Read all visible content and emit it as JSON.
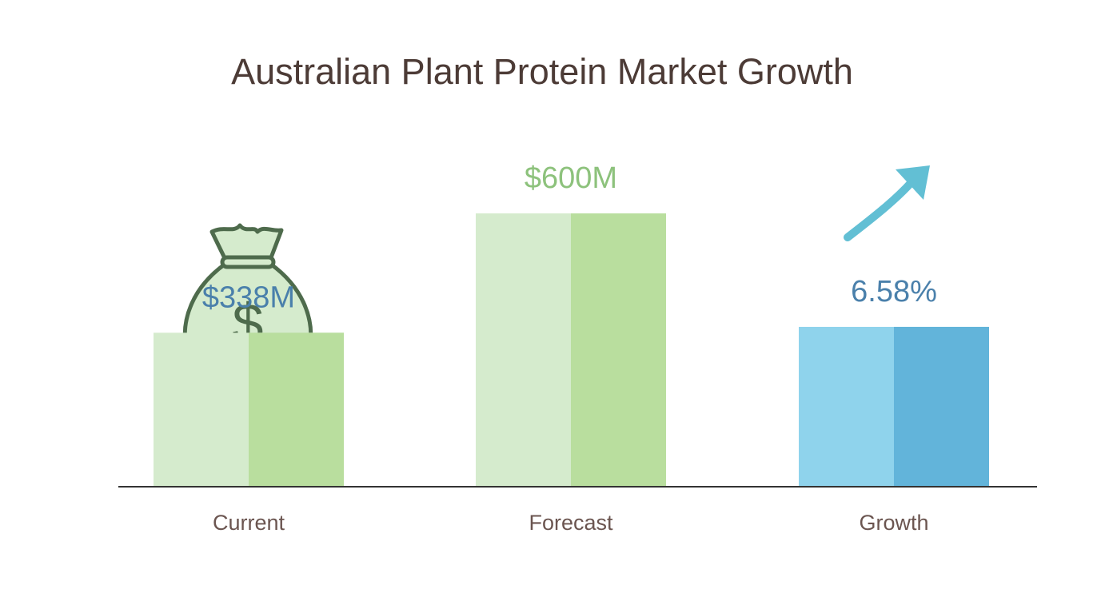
{
  "chart_data": {
    "type": "bar",
    "title": "Australian Plant Protein Market Growth",
    "categories": [
      "Current",
      "Forecast",
      "Growth"
    ],
    "values": [
      338,
      600,
      6.58
    ],
    "value_labels": [
      "$338M",
      "$600M",
      "6.58%"
    ],
    "value_axes": [
      "y",
      "y",
      "y2"
    ],
    "ylim": [
      0,
      600
    ],
    "y2lim": [
      0,
      11.25
    ],
    "colors": [
      [
        "#d5ebcd",
        "#b9de9e"
      ],
      [
        "#d5ebcd",
        "#b9de9e"
      ],
      [
        "#8fd3ec",
        "#62b4da"
      ]
    ],
    "label_colors": [
      "#4a80ab",
      "#8dc27c",
      "#4a80ab"
    ]
  }
}
